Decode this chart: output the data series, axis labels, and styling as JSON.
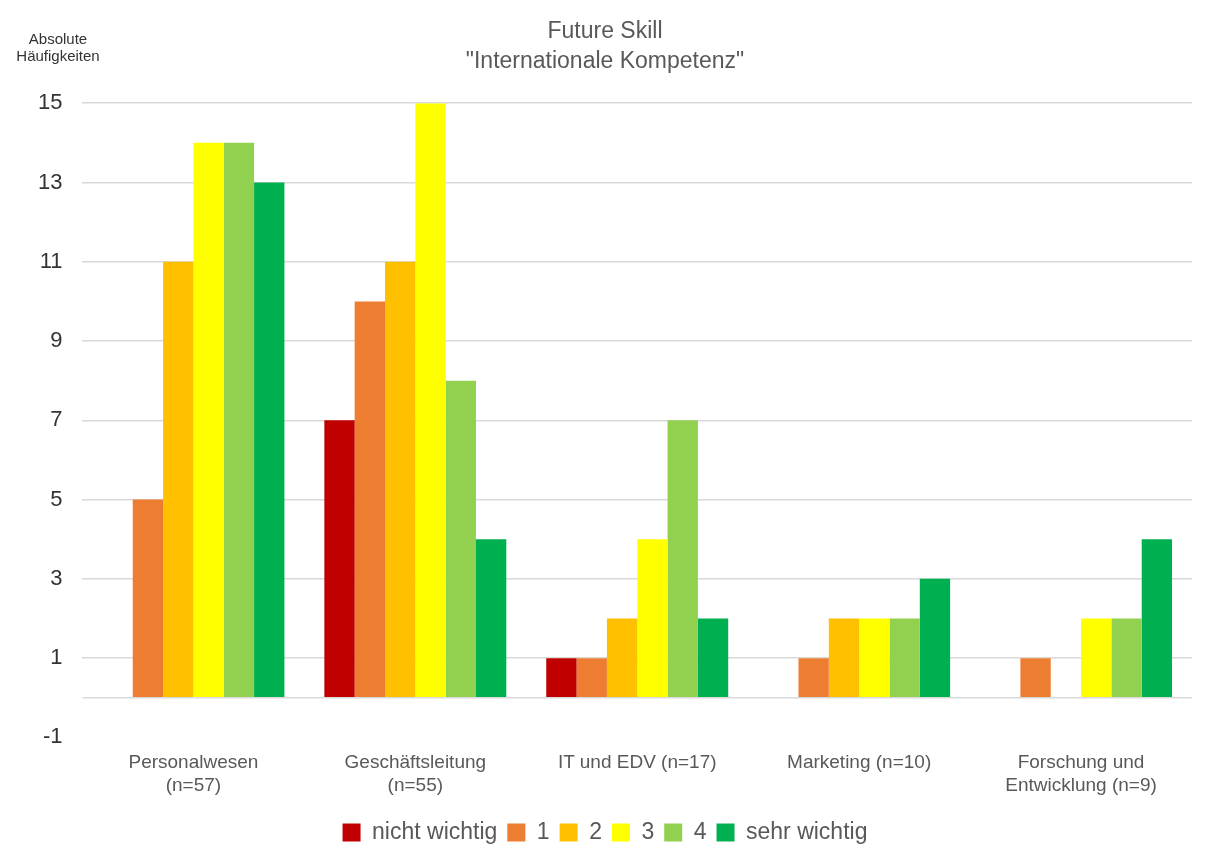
{
  "chart_data": {
    "type": "bar",
    "title": "Future Skill",
    "subtitle": "\"Internationale Kompetenz\"",
    "ylabel": "Absolute Häufigkeiten",
    "categories": [
      "Personalwesen (n=57)",
      "Geschäftsleitung (n=55)",
      "IT und EDV (n=17)",
      "Marketing (n=10)",
      "Forschung und Entwicklung (n=9)"
    ],
    "series": [
      {
        "name": "nicht wichtig",
        "color": "#c00000",
        "values": [
          0,
          7,
          1,
          0,
          0
        ]
      },
      {
        "name": "1",
        "color": "#ed7d31",
        "values": [
          5,
          10,
          1,
          1,
          1
        ]
      },
      {
        "name": "2",
        "color": "#ffc000",
        "values": [
          11,
          11,
          2,
          2,
          0
        ]
      },
      {
        "name": "3",
        "color": "#ffff00",
        "values": [
          14,
          15,
          4,
          2,
          2
        ]
      },
      {
        "name": "4",
        "color": "#92d050",
        "values": [
          14,
          8,
          7,
          2,
          2
        ]
      },
      {
        "name": "sehr wichtig",
        "color": "#00b050",
        "values": [
          13,
          4,
          2,
          3,
          4
        ]
      }
    ],
    "ylim": [
      -1,
      15
    ],
    "yticks": [
      -1,
      1,
      3,
      5,
      7,
      9,
      11,
      13,
      15
    ],
    "grid": "y",
    "legend": "bottom"
  }
}
